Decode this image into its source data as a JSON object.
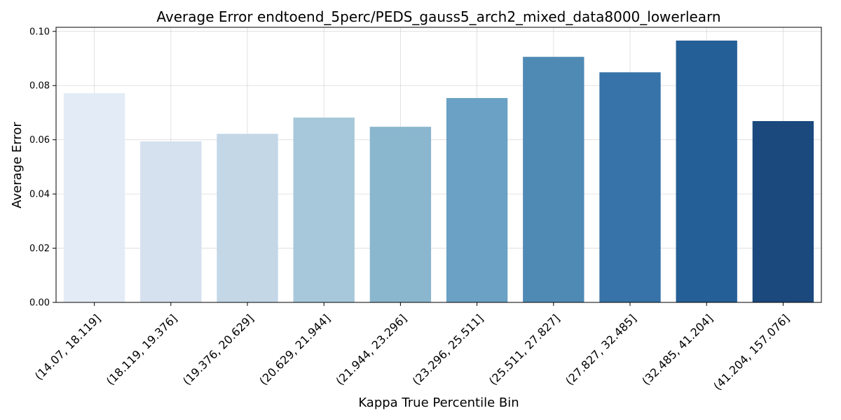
{
  "chart_data": {
    "type": "bar",
    "title": "Average Error endtoend_5perc/PEDS_gauss5_arch2_mixed_data8000_lowerlearn",
    "xlabel": "Kappa True Percentile Bin",
    "ylabel": "Average Error",
    "categories": [
      "(14.07, 18.119]",
      "(18.119, 19.376]",
      "(19.376, 20.629]",
      "(20.629, 21.944]",
      "(21.944, 23.296]",
      "(23.296, 25.511]",
      "(25.511, 27.827]",
      "(27.827, 32.485]",
      "(32.485, 41.204]",
      "(41.204, 157.076]"
    ],
    "values": [
      0.0772,
      0.0594,
      0.0622,
      0.0682,
      0.0648,
      0.0754,
      0.0906,
      0.0849,
      0.0966,
      0.0669
    ],
    "colors": [
      "#e3ecf6",
      "#d5e1ee",
      "#c3d7e7",
      "#a7c8da",
      "#8ab6ce",
      "#6aa1c4",
      "#4f8ab5",
      "#3773a8",
      "#255f97",
      "#1b497e"
    ],
    "ylim": [
      0,
      0.1015
    ],
    "yticks": [
      "0.00",
      "0.02",
      "0.04",
      "0.06",
      "0.08",
      "0.10"
    ],
    "grid": true,
    "legend": "none"
  }
}
